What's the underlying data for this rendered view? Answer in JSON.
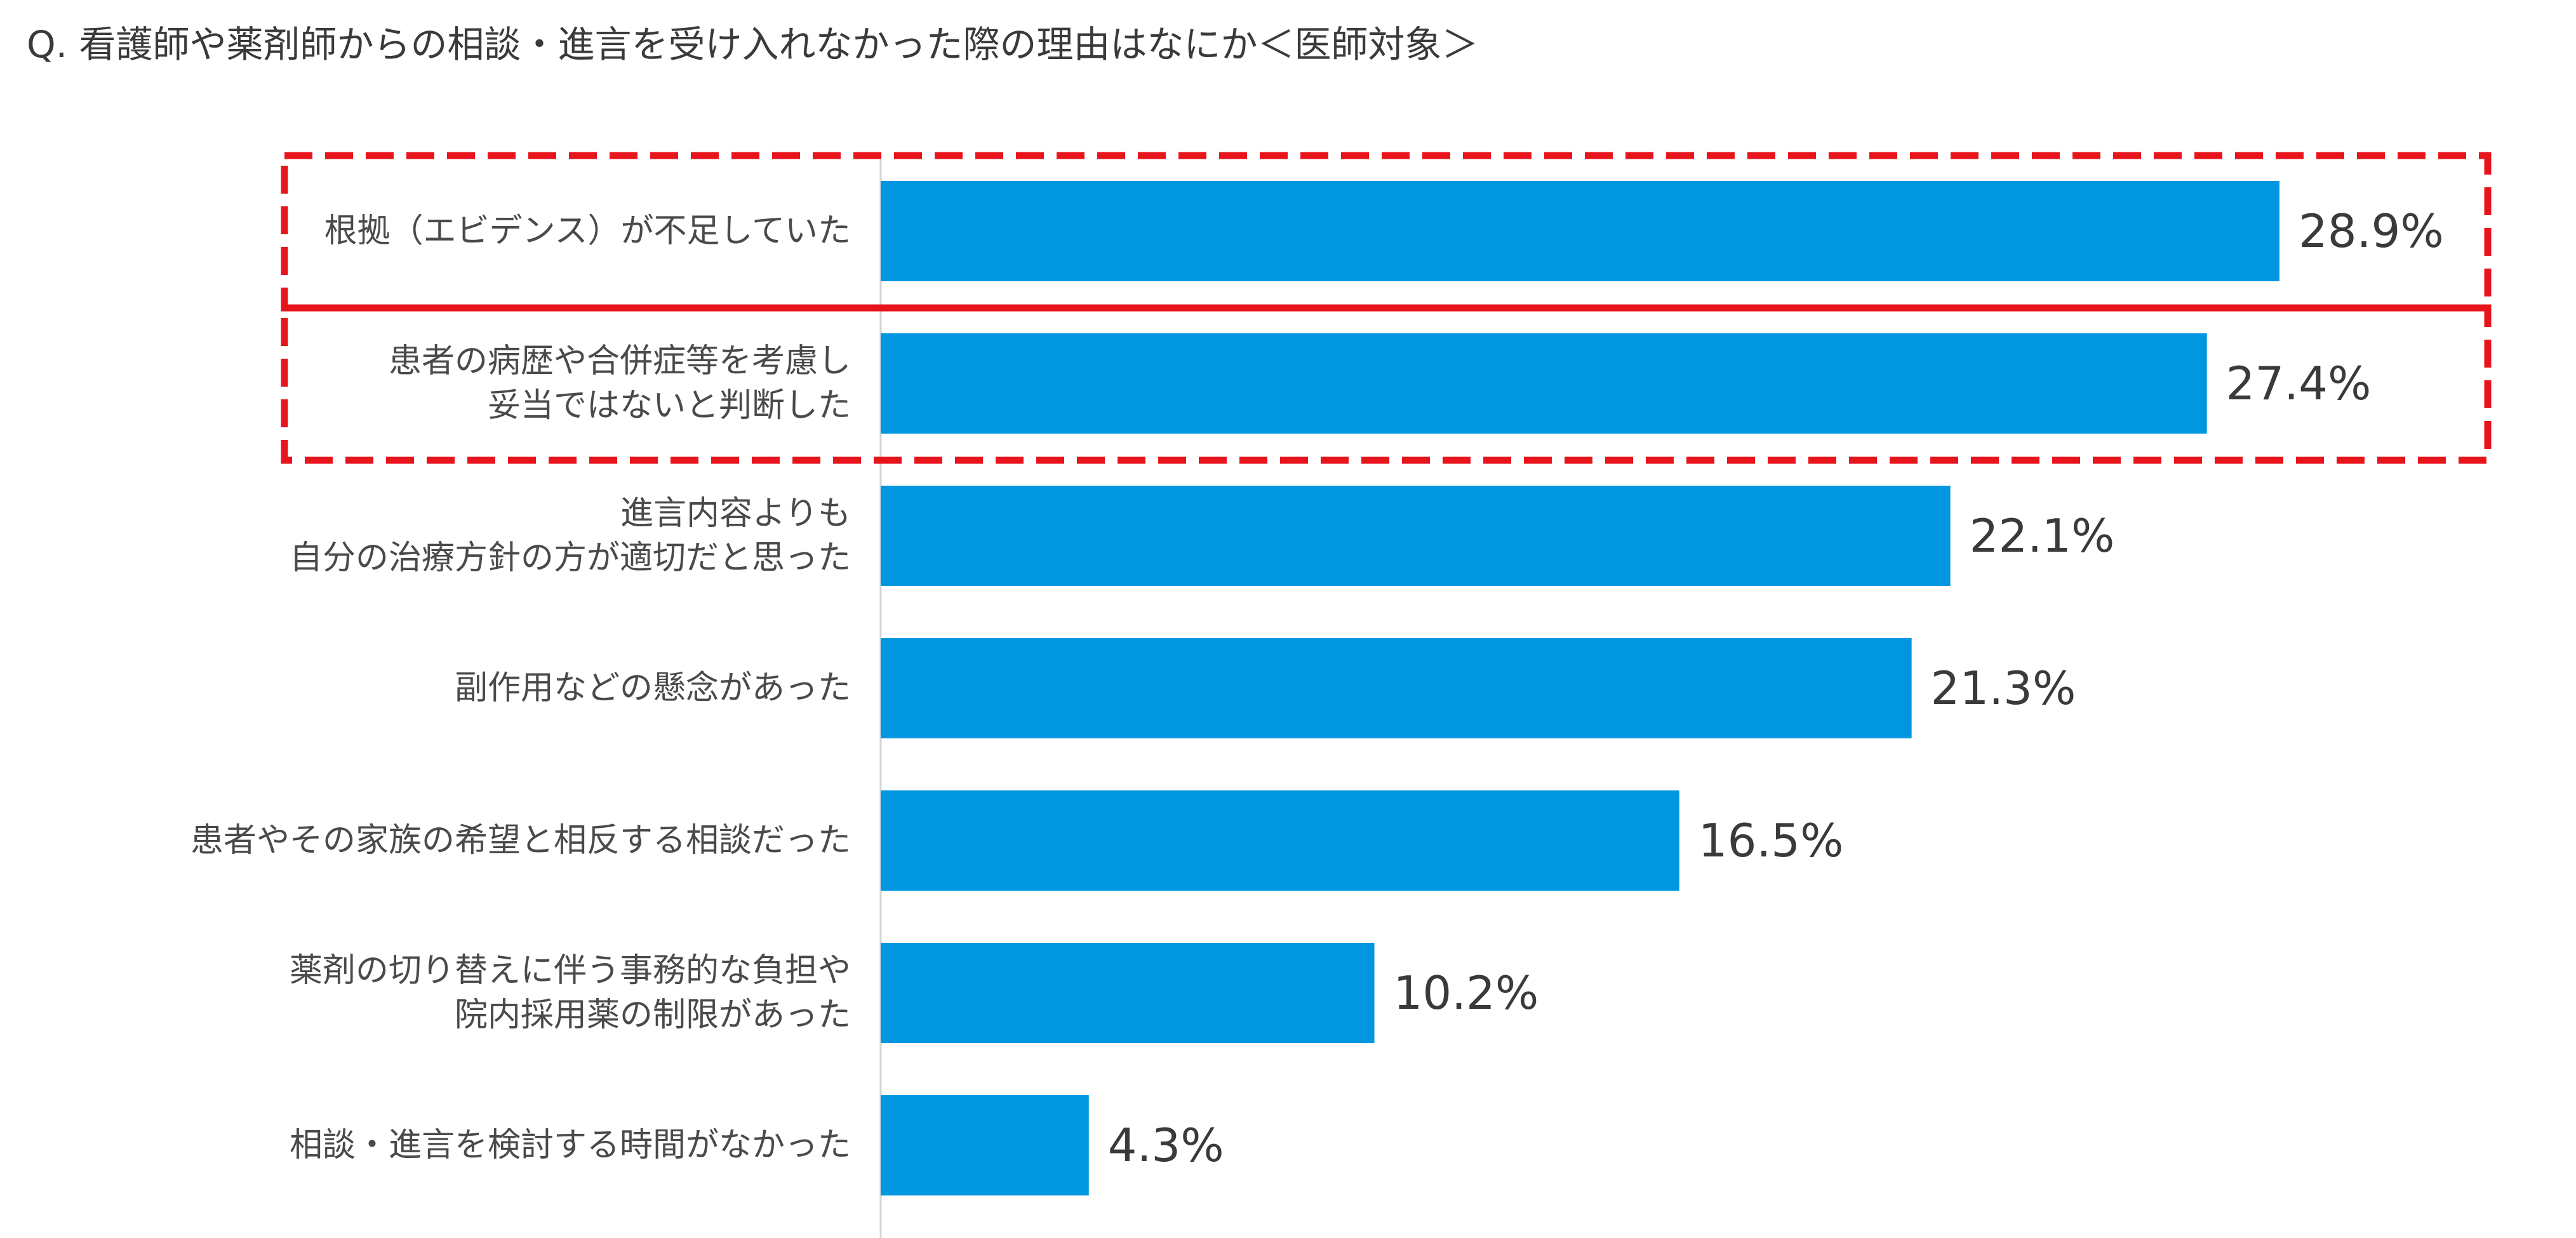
{
  "chart_data": {
    "type": "bar",
    "orientation": "horizontal",
    "title": "Q. 看護師や薬剤師からの相談・進言を受け入れなかった際の理由はなにか＜医師対象＞",
    "categories": [
      [
        "根拠（エビデンス）が不足していた"
      ],
      [
        "患者の病歴や合併症等を考慮し",
        "妥当ではないと判断した"
      ],
      [
        "進言内容よりも",
        "自分の治療方針の方が適切だと思った"
      ],
      [
        "副作用などの懸念があった"
      ],
      [
        "患者やその家族の希望と相反する相談だった"
      ],
      [
        "薬剤の切り替えに伴う事務的な負担や",
        "院内採用薬の制限があった"
      ],
      [
        "相談・進言を検討する時間がなかった"
      ]
    ],
    "values": [
      28.9,
      27.4,
      22.1,
      21.3,
      16.5,
      10.2,
      4.3
    ],
    "value_labels": [
      "28.9%",
      "27.4%",
      "22.1%",
      "21.3%",
      "16.5%",
      "10.2%",
      "4.3%"
    ],
    "highlighted_indices": [
      0,
      1
    ],
    "bar_color": "#0097e0",
    "highlight_color": "#e8141c",
    "xlim": [
      0,
      28.9
    ]
  }
}
